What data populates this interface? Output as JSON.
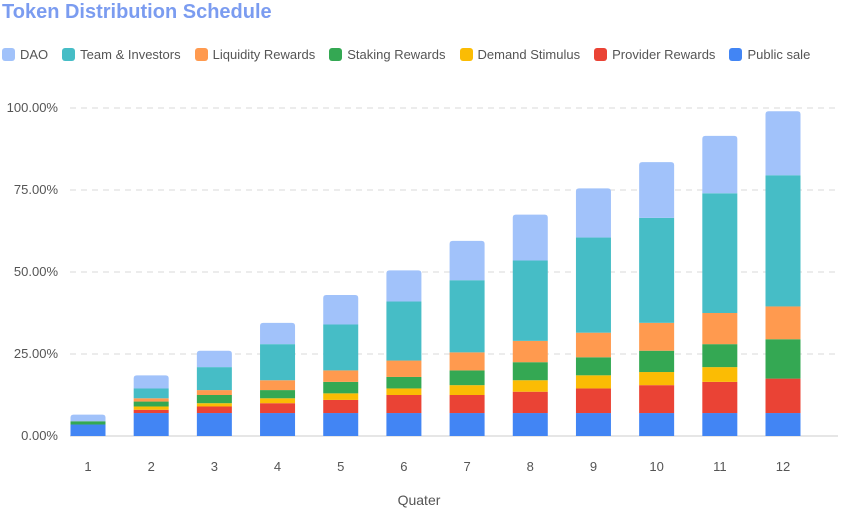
{
  "chart_data": {
    "type": "bar",
    "stacked": true,
    "title": "Token Distribution Schedule",
    "xlabel": "Quater",
    "ylabel": "",
    "ylim": [
      0,
      100
    ],
    "y_ticks": [
      "0.00%",
      "25.00%",
      "50.00%",
      "75.00%",
      "100.00%"
    ],
    "grid": true,
    "legend_position": "top",
    "categories": [
      "1",
      "2",
      "3",
      "4",
      "5",
      "6",
      "7",
      "8",
      "9",
      "10",
      "11",
      "12"
    ],
    "series": [
      {
        "name": "Public sale",
        "color": "#4285f4",
        "values": [
          3.5,
          7,
          7,
          7,
          7,
          7,
          7,
          7,
          7,
          7,
          7,
          7
        ]
      },
      {
        "name": "Provider Rewards",
        "color": "#ea4335",
        "values": [
          0,
          1,
          2,
          3,
          4,
          5.5,
          5.5,
          6.5,
          7.5,
          8.5,
          9.5,
          10.5
        ]
      },
      {
        "name": "Demand  Stimulus",
        "color": "#fbbc04",
        "values": [
          0,
          1,
          1,
          1.5,
          2,
          2,
          3,
          3.5,
          4,
          4,
          4.5,
          0
        ]
      },
      {
        "name": "Staking Rewards",
        "color": "#34a853",
        "values": [
          1,
          1.5,
          2.5,
          2.5,
          3.5,
          3.5,
          4.5,
          5.5,
          5.5,
          6.5,
          7,
          12
        ]
      },
      {
        "name": "Liquidity Rewards",
        "color": "#ff9a4f",
        "values": [
          0,
          1,
          1.5,
          3,
          3.5,
          5,
          5.5,
          6.5,
          7.5,
          8.5,
          9.5,
          10
        ]
      },
      {
        "name": "Team & Investors",
        "color": "#46bdc6",
        "values": [
          0,
          3,
          7,
          11,
          14,
          18,
          22,
          24.5,
          29,
          32,
          36.5,
          40
        ]
      },
      {
        "name": "DAO",
        "color": "#a1c2fa",
        "values": [
          2,
          4,
          5,
          6.5,
          9,
          9.5,
          12,
          14,
          15,
          17,
          17.5,
          19.5
        ]
      }
    ]
  }
}
